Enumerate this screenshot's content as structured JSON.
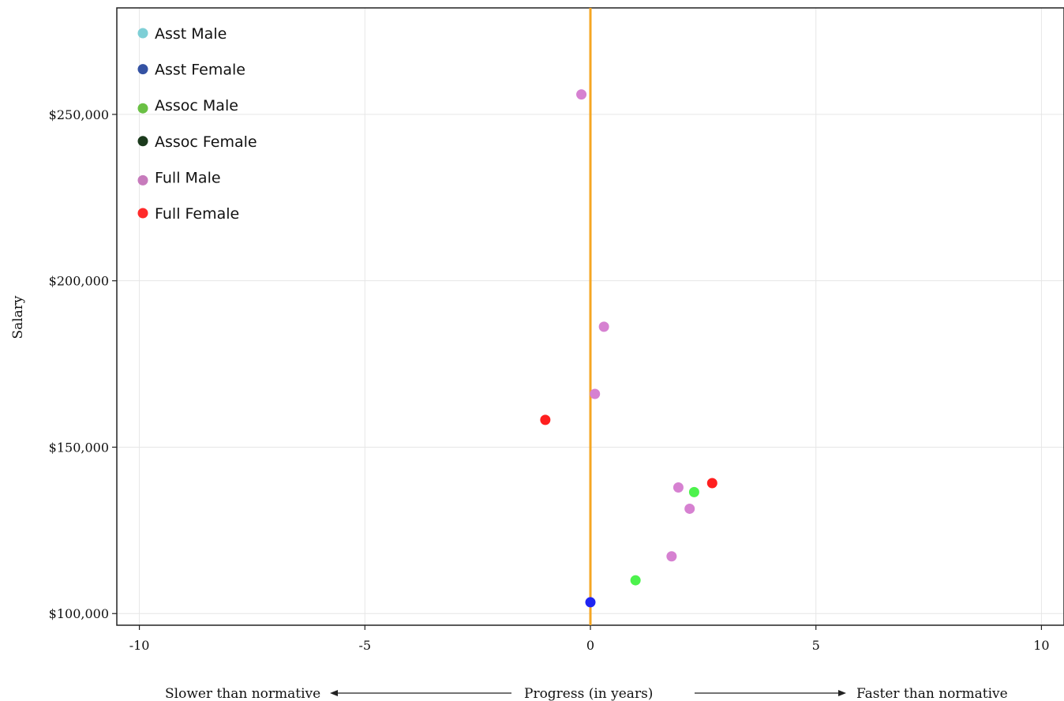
{
  "chart_data": {
    "type": "scatter",
    "title": "",
    "xlabel": "Progress (in years)",
    "ylabel": "Salary",
    "xlim": [
      -10.5,
      10.5
    ],
    "ylim": [
      96500,
      282000
    ],
    "x_ticks": [
      -10,
      -5,
      0,
      5,
      10
    ],
    "x_tick_labels": [
      "-10",
      "-5",
      "0",
      "5",
      "10"
    ],
    "y_ticks": [
      100000,
      150000,
      200000,
      250000
    ],
    "y_tick_labels": [
      "$100,000",
      "$150,000",
      "$200,000",
      "$250,000"
    ],
    "grid": true,
    "legend_position": "top-left",
    "reference_line": {
      "x": 0,
      "color": "#f5a623"
    },
    "annotations": {
      "left": "Slower than normative",
      "right": "Faster than normative"
    },
    "series": [
      {
        "name": "Asst Male",
        "color": "#7ecfd6",
        "points": []
      },
      {
        "name": "Asst Female",
        "color": "#1f25f2",
        "legend_color": "#3452a3",
        "points": [
          {
            "x": 0.0,
            "y": 103400
          }
        ]
      },
      {
        "name": "Assoc Male",
        "color": "#4cf24c",
        "legend_color": "#6ac044",
        "points": [
          {
            "x": 1.0,
            "y": 110000
          },
          {
            "x": 2.3,
            "y": 136500
          }
        ]
      },
      {
        "name": "Assoc Female",
        "color": "#1b3a1c",
        "points": []
      },
      {
        "name": "Full Male",
        "color": "#d681d1",
        "legend_color": "#c77bbc",
        "points": [
          {
            "x": -0.2,
            "y": 256000
          },
          {
            "x": 0.3,
            "y": 186200
          },
          {
            "x": 0.1,
            "y": 166000
          },
          {
            "x": 1.95,
            "y": 137900
          },
          {
            "x": 2.2,
            "y": 131500
          },
          {
            "x": 1.8,
            "y": 117200
          }
        ]
      },
      {
        "name": "Full Female",
        "color": "#ff1f1f",
        "legend_color": "#ff2a2a",
        "points": [
          {
            "x": -1.0,
            "y": 158200
          },
          {
            "x": 2.7,
            "y": 139200
          }
        ]
      }
    ]
  }
}
